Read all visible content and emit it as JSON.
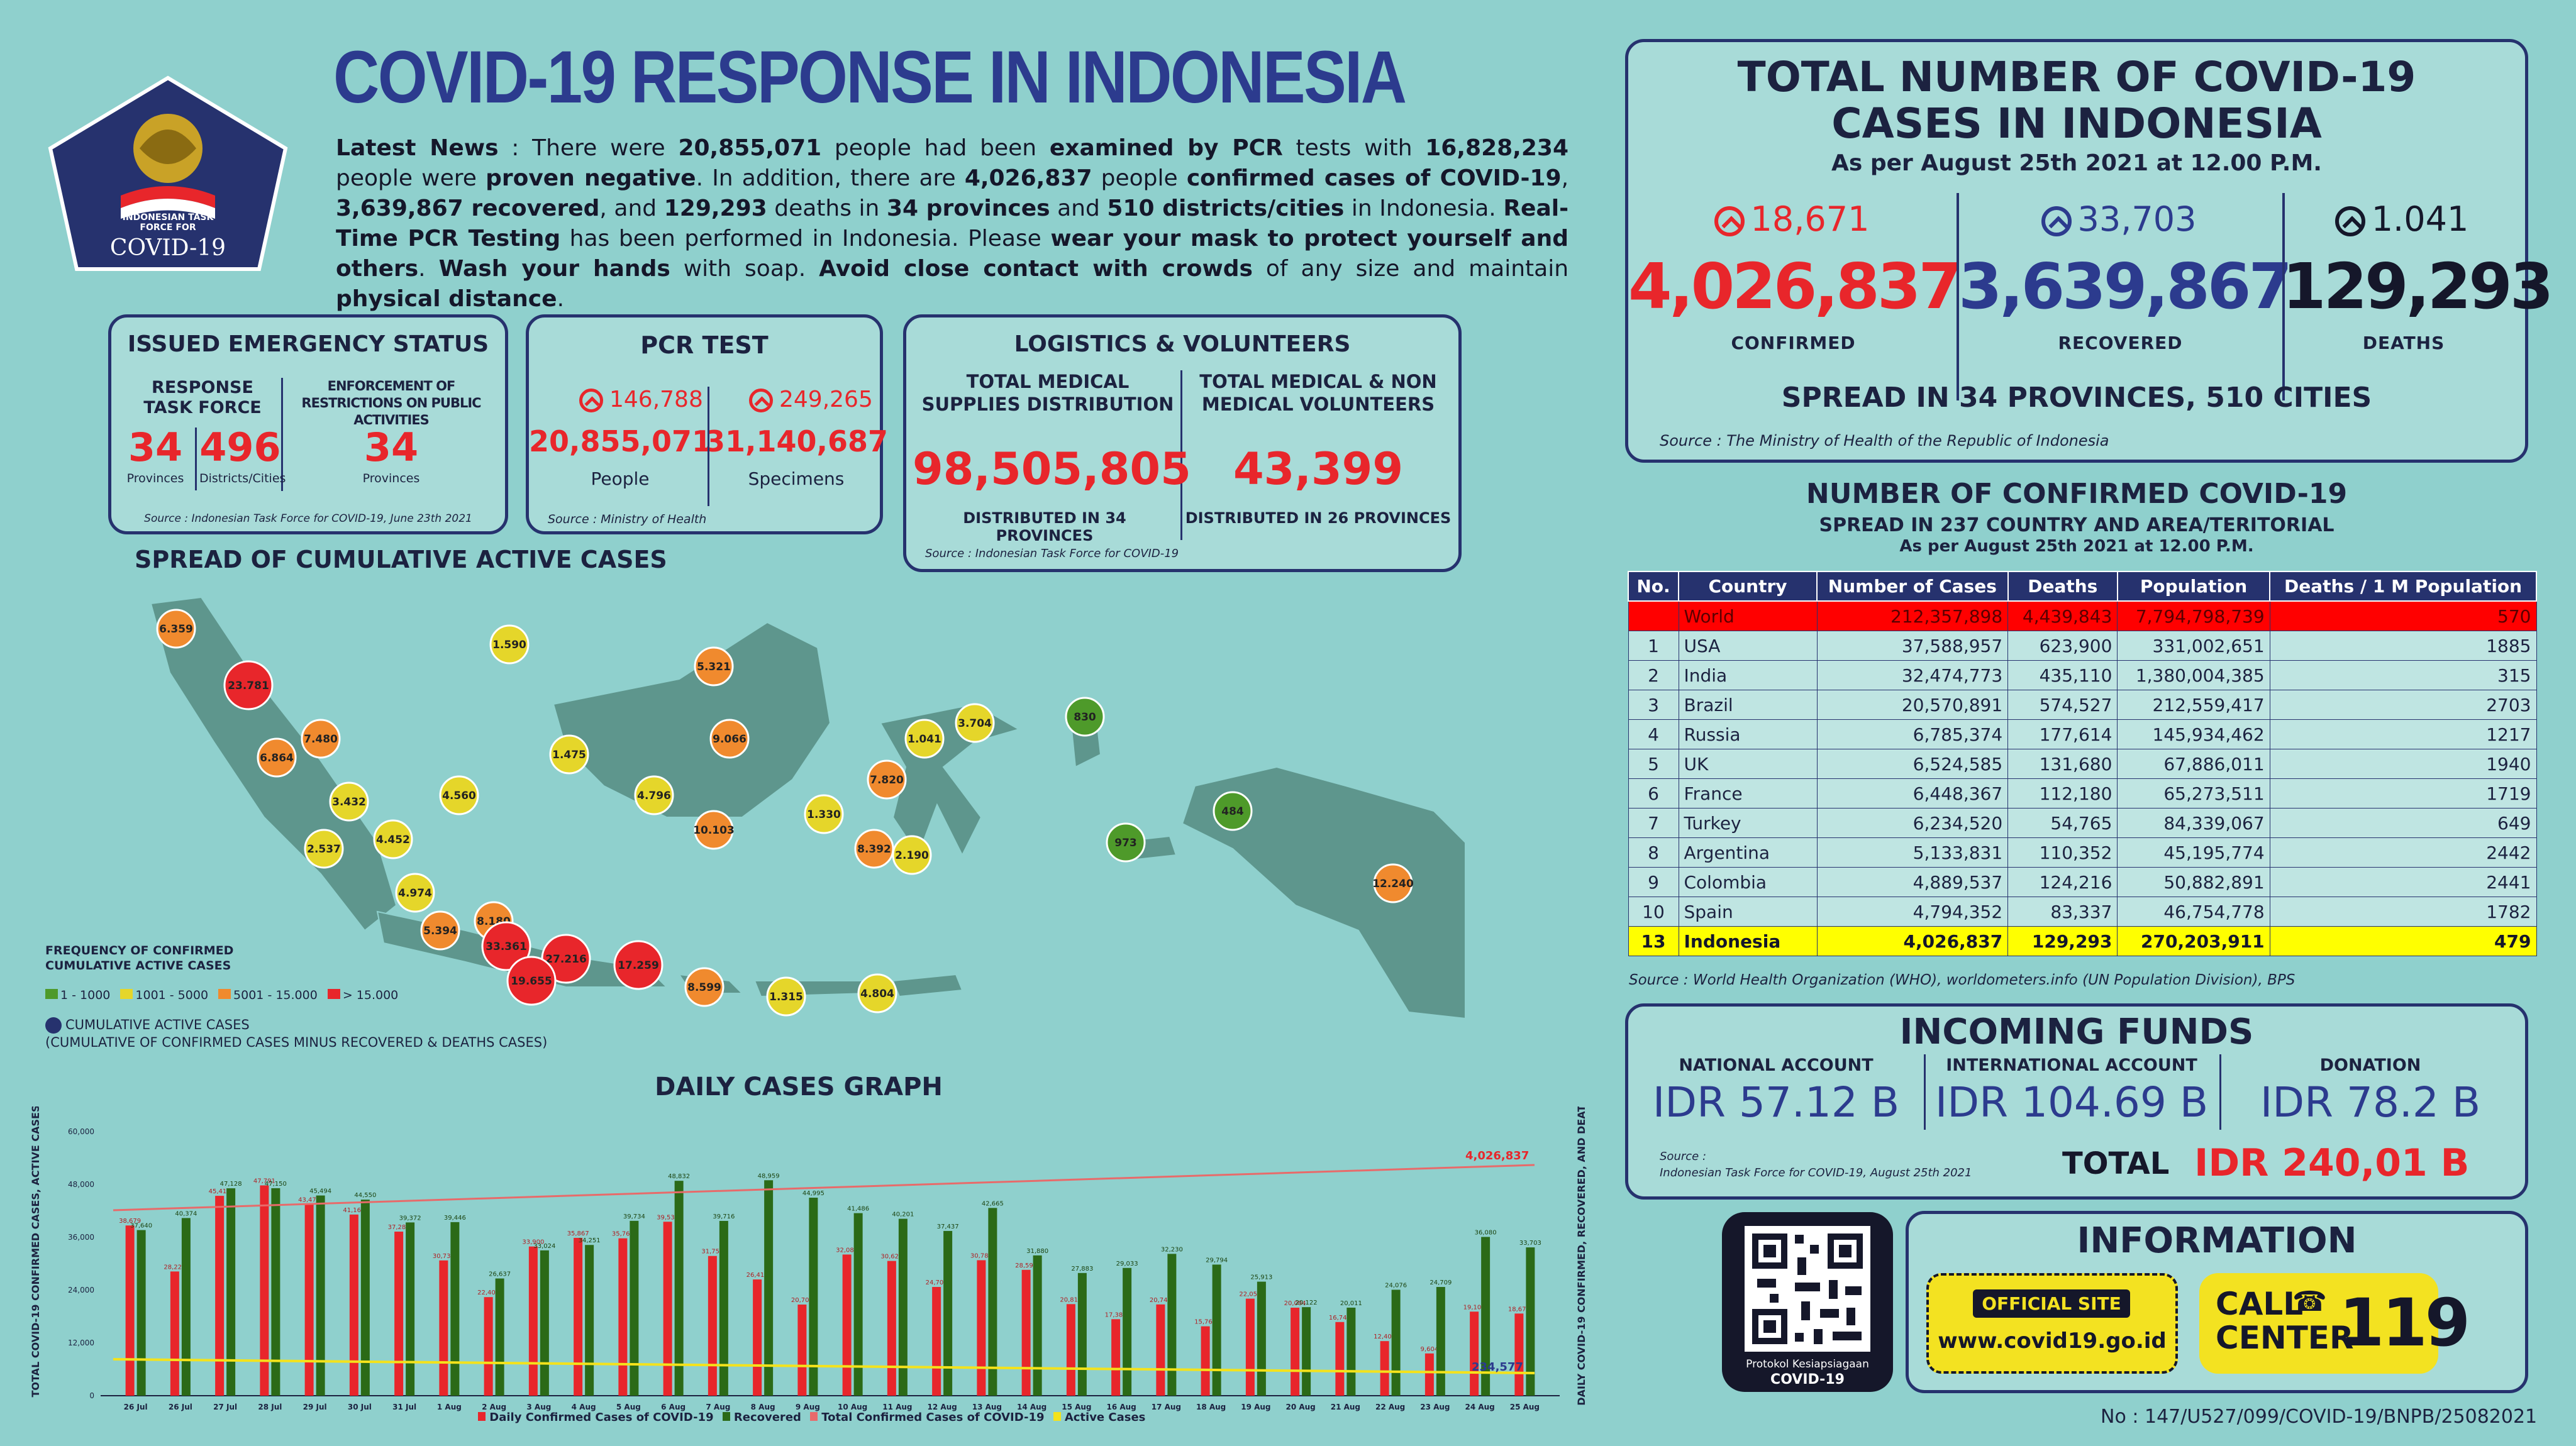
{
  "header": {
    "title": "COVID-19 RESPONSE IN INDONESIA",
    "logo_text": "INDONESIAN TASK FORCE FOR",
    "logo_big": "COVID-19"
  },
  "news": {
    "p1": "Latest News",
    "p2": " : There were ",
    "p3": "20,855,071",
    "p4": " people had been ",
    "p5": "examined by PCR",
    "p6": " tests with ",
    "p7": "16,828,234",
    "p8": " people were ",
    "p9": "proven negative",
    "p10": ". In addition, there are ",
    "p11": "4,026,837",
    "p12": " people ",
    "p13": "confirmed cases of COVID-19",
    "p14": ", ",
    "p15": "3,639,867 recovered",
    "p16": ", and ",
    "p17": "129,293",
    "p18": " deaths in ",
    "p19": "34 provinces",
    "p20": " and ",
    "p21": "510 districts/cities",
    "p22": " in Indonesia. ",
    "p23": "Real-Time PCR Testing",
    "p24": " has been performed in Indonesia. Please ",
    "p25": "wear your mask to protect yourself and others",
    "p26": ". ",
    "p27": "Wash your hands",
    "p28": " with soap. ",
    "p29": "Avoid close contact with crowds",
    "p30": " of any size and maintain ",
    "p31": "physical distance",
    "p32": "."
  },
  "emergency": {
    "title": "ISSUED EMERGENCY STATUS",
    "col1_head": "RESPONSE TASK FORCE",
    "col2_head": "ENFORCEMENT OF RESTRICTIONS ON PUBLIC ACTIVITIES",
    "v1": "34",
    "l1": "Provinces",
    "v2": "496",
    "l2": "Districts/Cities",
    "v3": "34",
    "l3": "Provinces",
    "source": "Source : Indonesian Task Force for COVID-19, June 23th 2021"
  },
  "pcr": {
    "title": "PCR TEST",
    "inc1": "146,788",
    "inc2": "249,265",
    "v1": "20,855,071",
    "l1": "People",
    "v2": "31,140,687",
    "l2": "Specimens",
    "source": "Source : Ministry of Health"
  },
  "logistics": {
    "title": "LOGISTICS & VOLUNTEERS",
    "h1": "TOTAL MEDICAL SUPPLIES DISTRIBUTION",
    "h2": "TOTAL MEDICAL & NON MEDICAL VOLUNTEERS",
    "v1": "98,505,805",
    "v2": "43,399",
    "l1": "DISTRIBUTED IN 34 PROVINCES",
    "l2": "DISTRIBUTED IN 26 PROVINCES",
    "source": "Source : Indonesian Task Force for COVID-19"
  },
  "map": {
    "title": "SPREAD OF CUMULATIVE ACTIVE CASES",
    "legend_title": "FREQUENCY OF CONFIRMED CUMULATIVE ACTIVE CASES",
    "legend": [
      {
        "label": "1 - 1000",
        "color": "#4e9a2a"
      },
      {
        "label": "1001 - 5000",
        "color": "#e5d62a"
      },
      {
        "label": "5001 - 15.000",
        "color": "#f08a2e"
      },
      {
        "label": "> 15.000",
        "color": "#e8262b"
      }
    ],
    "cum_label": "CUMULATIVE ACTIVE CASES",
    "cum_desc": "(CUMULATIVE OF CONFIRMED CASES MINUS RECOVERED & DEATHS CASES)",
    "bubbles": [
      {
        "v": "6.359",
        "c": "#f08a2e"
      },
      {
        "v": "1.590",
        "c": "#e5d62a"
      },
      {
        "v": "23.781",
        "c": "#e8262b"
      },
      {
        "v": "7.480",
        "c": "#f08a2e"
      },
      {
        "v": "6.864",
        "c": "#f08a2e"
      },
      {
        "v": "3.432",
        "c": "#e5d62a"
      },
      {
        "v": "4.560",
        "c": "#e5d62a"
      },
      {
        "v": "2.537",
        "c": "#e5d62a"
      },
      {
        "v": "4.452",
        "c": "#e5d62a"
      },
      {
        "v": "4.974",
        "c": "#e5d62a"
      },
      {
        "v": "8.180",
        "c": "#f08a2e"
      },
      {
        "v": "5.394",
        "c": "#f08a2e"
      },
      {
        "v": "33.361",
        "c": "#e8262b"
      },
      {
        "v": "27.216",
        "c": "#e8262b"
      },
      {
        "v": "19.655",
        "c": "#e8262b"
      },
      {
        "v": "17.259",
        "c": "#e8262b"
      },
      {
        "v": "8.599",
        "c": "#f08a2e"
      },
      {
        "v": "1.315",
        "c": "#e5d62a"
      },
      {
        "v": "4.804",
        "c": "#e5d62a"
      },
      {
        "v": "5.321",
        "c": "#f08a2e"
      },
      {
        "v": "1.475",
        "c": "#e5d62a"
      },
      {
        "v": "9.066",
        "c": "#f08a2e"
      },
      {
        "v": "4.796",
        "c": "#e5d62a"
      },
      {
        "v": "10.103",
        "c": "#f08a2e"
      },
      {
        "v": "1.330",
        "c": "#e5d62a"
      },
      {
        "v": "7.820",
        "c": "#f08a2e"
      },
      {
        "v": "1.041",
        "c": "#e5d62a"
      },
      {
        "v": "3.704",
        "c": "#e5d62a"
      },
      {
        "v": "8.392",
        "c": "#f08a2e"
      },
      {
        "v": "2.190",
        "c": "#e5d62a"
      },
      {
        "v": "830",
        "c": "#4e9a2a"
      },
      {
        "v": "973",
        "c": "#4e9a2a"
      },
      {
        "v": "484",
        "c": "#4e9a2a"
      },
      {
        "v": "12.240",
        "c": "#f08a2e"
      }
    ]
  },
  "chart_data": {
    "type": "bar",
    "title": "DAILY CASES GRAPH",
    "ylabel_left": "TOTAL COVID-19 CONFIRMED CASES, ACTIVE CASES",
    "ylabel_right": "DAILY COVID-19 CONFIRMED, RECOVERED, AND DEATH",
    "categories": [
      "26 Jul",
      "26 Jul",
      "27 Jul",
      "28 Jul",
      "29 Jul",
      "30 Jul",
      "31 Jul",
      "1 Aug",
      "2 Aug",
      "3 Aug",
      "4 Aug",
      "5 Aug",
      "6 Aug",
      "7 Aug",
      "8 Aug",
      "9 Aug",
      "10 Aug",
      "11 Aug",
      "12 Aug",
      "13 Aug",
      "14 Aug",
      "15 Aug",
      "16 Aug",
      "17 Aug",
      "18 Aug",
      "19 Aug",
      "20 Aug",
      "21 Aug",
      "22 Aug",
      "23 Aug",
      "24 Aug",
      "25 Aug"
    ],
    "series": [
      {
        "name": "Daily Confirmed Cases of COVID-19",
        "color": "#e8262b",
        "values": [
          38679,
          28228,
          45416,
          47791,
          43479,
          41168,
          37284,
          30738,
          22404,
          33900,
          35867,
          35764,
          39532,
          31753,
          26415,
          20709,
          32081,
          30625,
          24709,
          30788,
          28598,
          20813,
          17384,
          20741,
          15768,
          22053,
          20004,
          16744,
          12408,
          9604,
          19106,
          18671
        ]
      },
      {
        "name": "Recovered",
        "color": "#2b6a17",
        "values": [
          37640,
          40374,
          47128,
          47150,
          45494,
          44550,
          39372,
          39446,
          26637,
          33024,
          34251,
          39734,
          48832,
          39716,
          48959,
          44995,
          41486,
          40201,
          37437,
          42665,
          31880,
          27883,
          29033,
          32230,
          29794,
          25913,
          20122,
          20011,
          24076,
          24709,
          36080,
          33703
        ]
      }
    ],
    "totals_line_end": "4,026,837",
    "active_end": "234,577",
    "legend": [
      "Daily Confirmed Cases of COVID-19",
      "Recovered",
      "Total Confirmed Cases of COVID-19",
      "Active Cases"
    ]
  },
  "total": {
    "title1": "TOTAL NUMBER OF COVID-19",
    "title2": "CASES IN INDONESIA",
    "asper": "As per August 25th 2021 at 12.00 P.M.",
    "c_inc": "18,671",
    "c_val": "4,026,837",
    "c_lab": "CONFIRMED",
    "r_inc": "33,703",
    "r_val": "3,639,867",
    "r_lab": "RECOVERED",
    "d_inc": "1.041",
    "d_val": "129,293",
    "d_lab": "DEATHS",
    "spread": "SPREAD IN 34 PROVINCES, 510 CITIES",
    "source": "Source : The Ministry of Health of the Republic of Indonesia"
  },
  "world": {
    "title": "NUMBER OF CONFIRMED COVID-19",
    "sub1": "SPREAD IN 237 COUNTRY AND AREA/TERITORIAL",
    "sub2": "As per August 25th 2021 at 12.00 P.M.",
    "headers": [
      "No.",
      "Country",
      "Number of Cases",
      "Deaths",
      "Population",
      "Deaths / 1 M Population"
    ],
    "rows": [
      [
        "",
        "World",
        "212,357,898",
        "4,439,843",
        "7,794,798,739",
        "570"
      ],
      [
        "1",
        "USA",
        "37,588,957",
        "623,900",
        "331,002,651",
        "1885"
      ],
      [
        "2",
        "India",
        "32,474,773",
        "435,110",
        "1,380,004,385",
        "315"
      ],
      [
        "3",
        "Brazil",
        "20,570,891",
        "574,527",
        "212,559,417",
        "2703"
      ],
      [
        "4",
        "Russia",
        "6,785,374",
        "177,614",
        "145,934,462",
        "1217"
      ],
      [
        "5",
        "UK",
        "6,524,585",
        "131,680",
        "67,886,011",
        "1940"
      ],
      [
        "6",
        "France",
        "6,448,367",
        "112,180",
        "65,273,511",
        "1719"
      ],
      [
        "7",
        "Turkey",
        "6,234,520",
        "54,765",
        "84,339,067",
        "649"
      ],
      [
        "8",
        "Argentina",
        "5,133,831",
        "110,352",
        "45,195,774",
        "2442"
      ],
      [
        "9",
        "Colombia",
        "4,889,537",
        "124,216",
        "50,882,891",
        "2441"
      ],
      [
        "10",
        "Spain",
        "4,794,352",
        "83,337",
        "46,754,778",
        "1782"
      ],
      [
        "13",
        "Indonesia",
        "4,026,837",
        "129,293",
        "270,203,911",
        "479"
      ]
    ],
    "source": "Source : World Health Organization (WHO), worldometers.info (UN Population Division), BPS"
  },
  "funds": {
    "title": "INCOMING FUNDS",
    "h1": "NATIONAL ACCOUNT",
    "v1": "IDR 57.12 B",
    "h2": "INTERNATIONAL ACCOUNT",
    "v2": "IDR 104.69 B",
    "h3": "DONATION",
    "v3": "IDR 78.2 B",
    "src1": "Source :",
    "src2": "Indonesian Task Force for COVID-19, August 25th 2021",
    "total_label": "TOTAL",
    "total_value": "IDR 240,01 B"
  },
  "qr": {
    "line1": "Protokol Kesiapsiagaan",
    "line2": "COVID-19"
  },
  "info": {
    "title": "INFORMATION",
    "official": "OFFICIAL SITE",
    "url": "www.covid19.go.id",
    "call1": "CALL",
    "call2": "CENTER",
    "number": "119"
  },
  "footer": {
    "ref": "No : 147/U527/099/COVID-19/BNPB/25082021"
  }
}
